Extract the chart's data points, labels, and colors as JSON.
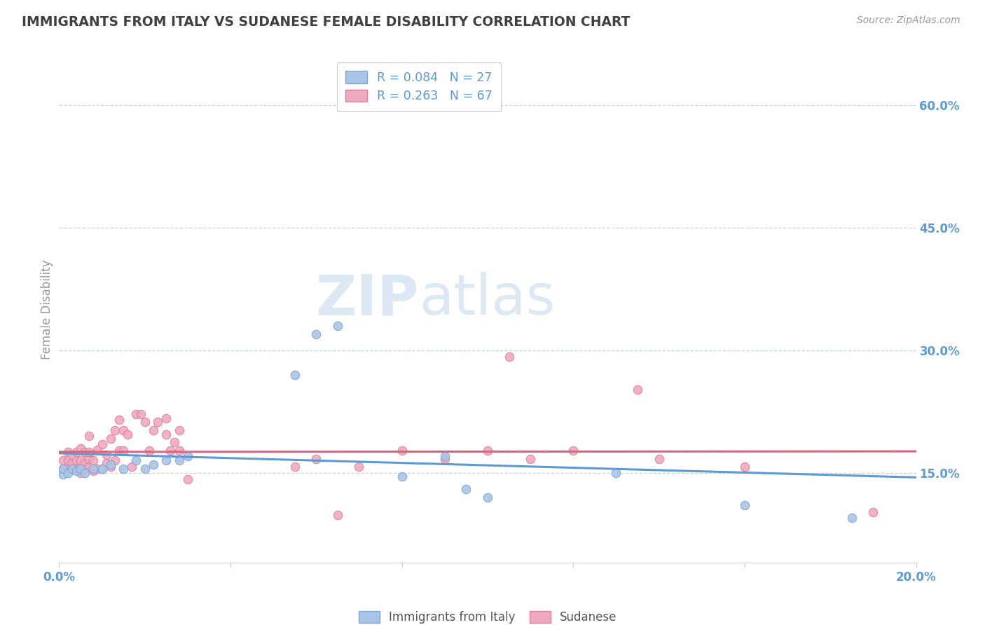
{
  "title": "IMMIGRANTS FROM ITALY VS SUDANESE FEMALE DISABILITY CORRELATION CHART",
  "source": "Source: ZipAtlas.com",
  "ylabel": "Female Disability",
  "y_ticks": [
    0.15,
    0.3,
    0.45,
    0.6
  ],
  "y_tick_labels": [
    "15.0%",
    "30.0%",
    "45.0%",
    "60.0%"
  ],
  "x_range": [
    0.0,
    0.2
  ],
  "y_range": [
    0.04,
    0.66
  ],
  "legend_italy": "Immigrants from Italy",
  "legend_sudanese": "Sudanese",
  "R_italy": "R = 0.084",
  "N_italy": "N = 27",
  "R_sudanese": "R = 0.263",
  "N_sudanese": "N = 67",
  "color_italy": "#aac4e8",
  "color_sudanese": "#f0aac0",
  "edge_italy": "#7aaad0",
  "edge_sudanese": "#e080a0",
  "line_color_italy": "#5b9bd5",
  "line_color_sudanese": "#e06080",
  "title_color": "#404040",
  "axis_label_color": "#5b9bd5",
  "watermark_color": "#dde8f5",
  "background_color": "#ffffff",
  "grid_color": "#c8d4e8",
  "italy_x": [
    0.001,
    0.001,
    0.002,
    0.003,
    0.004,
    0.005,
    0.006,
    0.008,
    0.01,
    0.012,
    0.015,
    0.018,
    0.02,
    0.022,
    0.025,
    0.028,
    0.03,
    0.055,
    0.06,
    0.065,
    0.08,
    0.09,
    0.095,
    0.1,
    0.13,
    0.16,
    0.185
  ],
  "italy_y": [
    0.148,
    0.155,
    0.15,
    0.155,
    0.152,
    0.155,
    0.15,
    0.155,
    0.155,
    0.16,
    0.155,
    0.165,
    0.155,
    0.16,
    0.165,
    0.165,
    0.17,
    0.27,
    0.32,
    0.33,
    0.145,
    0.17,
    0.13,
    0.12,
    0.15,
    0.11,
    0.095
  ],
  "sudanese_x": [
    0.001,
    0.001,
    0.002,
    0.002,
    0.002,
    0.003,
    0.003,
    0.003,
    0.004,
    0.004,
    0.004,
    0.005,
    0.005,
    0.005,
    0.005,
    0.006,
    0.006,
    0.006,
    0.007,
    0.007,
    0.007,
    0.007,
    0.008,
    0.008,
    0.009,
    0.009,
    0.01,
    0.01,
    0.011,
    0.011,
    0.012,
    0.012,
    0.013,
    0.013,
    0.014,
    0.014,
    0.015,
    0.015,
    0.016,
    0.017,
    0.018,
    0.019,
    0.02,
    0.021,
    0.022,
    0.023,
    0.025,
    0.025,
    0.026,
    0.027,
    0.028,
    0.028,
    0.03,
    0.055,
    0.06,
    0.065,
    0.07,
    0.08,
    0.09,
    0.1,
    0.105,
    0.11,
    0.12,
    0.135,
    0.14,
    0.16,
    0.19
  ],
  "sudanese_y": [
    0.165,
    0.155,
    0.155,
    0.175,
    0.165,
    0.155,
    0.162,
    0.172,
    0.155,
    0.165,
    0.175,
    0.15,
    0.158,
    0.165,
    0.18,
    0.155,
    0.162,
    0.175,
    0.158,
    0.167,
    0.175,
    0.195,
    0.152,
    0.165,
    0.155,
    0.178,
    0.155,
    0.185,
    0.162,
    0.172,
    0.157,
    0.192,
    0.165,
    0.202,
    0.215,
    0.177,
    0.202,
    0.177,
    0.197,
    0.157,
    0.222,
    0.222,
    0.212,
    0.177,
    0.202,
    0.212,
    0.197,
    0.217,
    0.177,
    0.187,
    0.177,
    0.202,
    0.142,
    0.157,
    0.167,
    0.098,
    0.157,
    0.177,
    0.167,
    0.177,
    0.292,
    0.167,
    0.177,
    0.252,
    0.167,
    0.157,
    0.102
  ]
}
